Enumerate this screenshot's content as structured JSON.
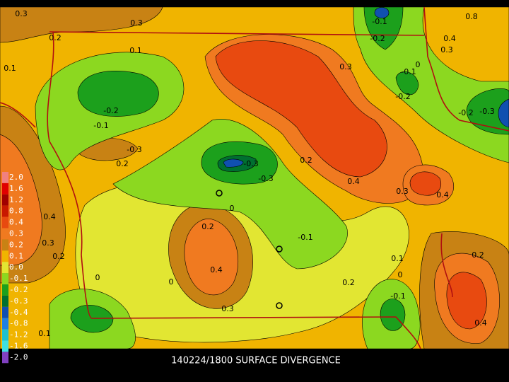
{
  "map": {
    "title": "140224/1800 SURFACE DIVERGENCE",
    "legend": [
      {
        "label": "2.0",
        "color": "#f08080"
      },
      {
        "label": "1.6",
        "color": "#e00000"
      },
      {
        "label": "1.2",
        "color": "#a00000"
      },
      {
        "label": "0.8",
        "color": "#c81800"
      },
      {
        "label": "0.4",
        "color": "#e84a10"
      },
      {
        "label": "0.3",
        "color": "#f07a20"
      },
      {
        "label": "0.2",
        "color": "#c88214"
      },
      {
        "label": "0.1",
        "color": "#f0b400"
      },
      {
        "label": "0.0",
        "color": "#e2e632"
      },
      {
        "label": "-0.1",
        "color": "#8cd820"
      },
      {
        "label": "-0.2",
        "color": "#1ca01c"
      },
      {
        "label": "-0.3",
        "color": "#007030"
      },
      {
        "label": "-0.4",
        "color": "#1050b0"
      },
      {
        "label": "-0.8",
        "color": "#2080e0"
      },
      {
        "label": "-1.2",
        "color": "#20c0d0"
      },
      {
        "label": "-1.6",
        "color": "#40e0e0"
      },
      {
        "label": "-2.0",
        "color": "#8040c0"
      }
    ],
    "contour_labels": [
      "0.3",
      "0.3",
      "0.2",
      "0.1",
      "0.1",
      "-0.2",
      "-0.1",
      "-0.3",
      "0.2",
      "-0.3",
      "-0.3",
      "0.2",
      "0.4",
      "0.3",
      "0.4",
      "0.3",
      "0.8",
      "0.4",
      "0.3",
      "0",
      "-0.1",
      "-0.2",
      "-0.2",
      "-0.3",
      "-0.2",
      "-0.1",
      "0.4",
      "0.3",
      "0.2",
      "0",
      "0.2",
      "-0.1",
      "0.4",
      "0.1",
      "0",
      "0.2",
      "-0.1",
      "0",
      "0",
      "0.3",
      "0.4",
      "0.2",
      "0.1"
    ]
  }
}
